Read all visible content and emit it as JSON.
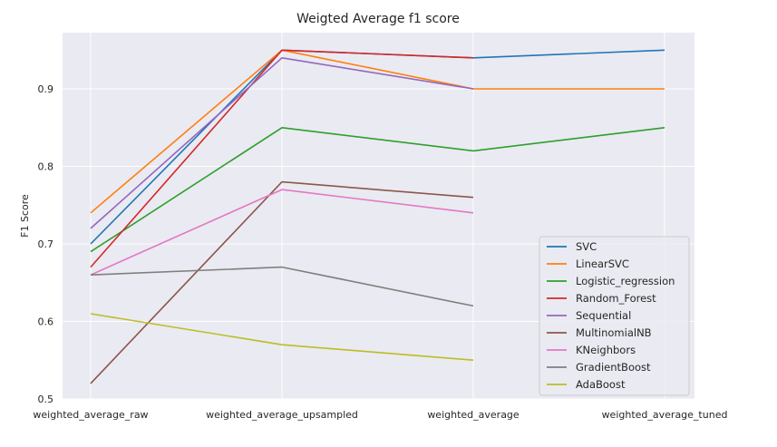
{
  "chart_data": {
    "type": "line",
    "title": "Weigted Average f1 score",
    "xlabel": "",
    "ylabel": "F1 Score",
    "categories": [
      "weighted_average_raw",
      "weighted_average_upsampled",
      "weighted_average",
      "weighted_average_tuned"
    ],
    "yticks": [
      "0.5",
      "0.6",
      "0.7",
      "0.8",
      "0.9"
    ],
    "ylim": [
      0.5,
      0.96
    ],
    "grid": true,
    "legend_position": "lower-right",
    "series": [
      {
        "name": "SVC",
        "color": "#1f77b4",
        "values": [
          0.7,
          0.95,
          0.94,
          0.95
        ]
      },
      {
        "name": "LinearSVC",
        "color": "#ff7f0e",
        "values": [
          0.74,
          0.95,
          0.9,
          0.9
        ]
      },
      {
        "name": "Logistic_regression",
        "color": "#2ca02c",
        "values": [
          0.69,
          0.85,
          0.82,
          0.85
        ]
      },
      {
        "name": "Random_Forest",
        "color": "#d62728",
        "values": [
          0.67,
          0.95,
          0.94,
          null
        ]
      },
      {
        "name": "Sequential",
        "color": "#9467bd",
        "values": [
          0.72,
          0.94,
          0.9,
          null
        ]
      },
      {
        "name": "MultinomialNB",
        "color": "#8c564b",
        "values": [
          0.52,
          0.78,
          0.76,
          null
        ]
      },
      {
        "name": "KNeighbors",
        "color": "#e377c2",
        "values": [
          0.66,
          0.77,
          0.74,
          null
        ]
      },
      {
        "name": "GradientBoost",
        "color": "#7f7f7f",
        "values": [
          0.66,
          0.67,
          0.62,
          null
        ]
      },
      {
        "name": "AdaBoost",
        "color": "#bcbd22",
        "values": [
          0.61,
          0.57,
          0.55,
          null
        ]
      }
    ]
  }
}
